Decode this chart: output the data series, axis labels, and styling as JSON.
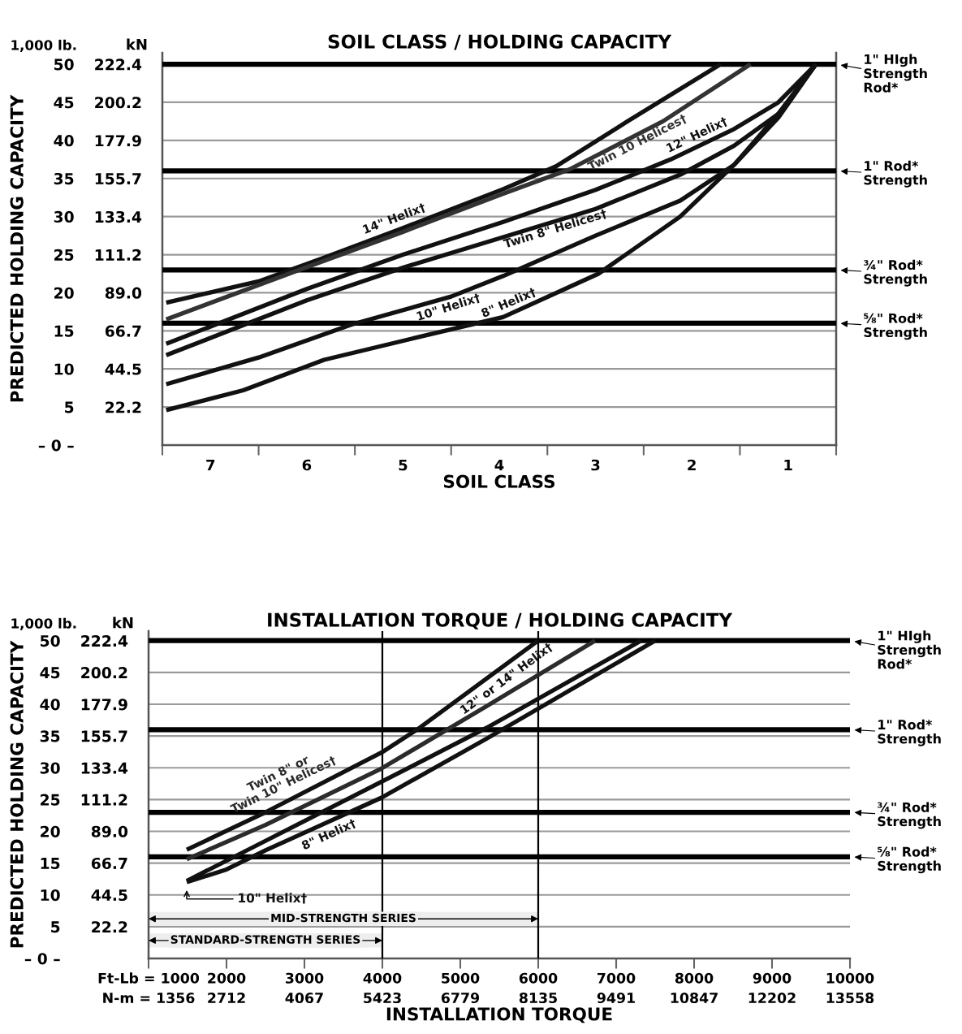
{
  "chart_data": [
    {
      "type": "line",
      "title": "SOIL CLASS / HOLDING CAPACITY",
      "xlabel": "SOIL CLASS",
      "ylabel": "PREDICTED HOLDING CAPACITY",
      "y2label": "kN",
      "annotations": [
        "1,000 lb."
      ],
      "xlim": [
        7.5,
        0.5
      ],
      "xticks": [
        {
          "value": 7.5,
          "label": null
        },
        {
          "value": 6.5,
          "label": null
        },
        {
          "value": 5.5,
          "label": null
        },
        {
          "value": 4.5,
          "label": null
        },
        {
          "value": 3.5,
          "label": null
        },
        {
          "value": 2.5,
          "label": null
        },
        {
          "value": 1.5,
          "label": null
        },
        {
          "value": 0.5,
          "label": null
        },
        7,
        6,
        5,
        4,
        3,
        2,
        1
      ],
      "ylim": [
        0,
        51.5
      ],
      "yticks": [
        {
          "value": 0,
          "label": "– 0 –"
        },
        5,
        10,
        15,
        20,
        25,
        30,
        35,
        40,
        45,
        50
      ],
      "y2lim": [
        0,
        229.1
      ],
      "y2ticks": [
        22.2,
        44.5,
        66.7,
        {
          "value": 89.0,
          "label": "89.0"
        },
        111.2,
        133.4,
        155.7,
        177.9,
        200.2,
        222.4
      ],
      "grid": "y",
      "ref_lines": [
        {
          "axis": "y",
          "value": 50,
          "label": "1\" HIgh\nStrength\nRod*"
        },
        {
          "axis": "y",
          "value": 36,
          "label": "1\" Rod*\nStrength"
        },
        {
          "axis": "y",
          "value": 23,
          "label": "¾\" Rod*\nStrength"
        },
        {
          "axis": "y",
          "value": 16,
          "label": "⅝\" Rod*\nStrength"
        }
      ],
      "series": [
        {
          "name": "14\" Helix†",
          "color": "#111111",
          "x": [
            7.46,
            6.5,
            5.82,
            5,
            3.96,
            3.41,
            2.68,
            1.7
          ],
          "values": [
            18.7,
            21.5,
            24.6,
            28.5,
            33.6,
            36.6,
            42.4,
            50
          ]
        },
        {
          "name": "Twin 10 Helices†",
          "color": "#333333",
          "x": [
            7.46,
            6.1,
            5,
            3.96,
            3.27,
            2.3,
            1.39
          ],
          "values": [
            16.5,
            22.9,
            28,
            33,
            36.2,
            42.5,
            50
          ]
        },
        {
          "name": "12\" Helix†",
          "color": "#111111",
          "x": [
            7.46,
            6,
            5,
            3.96,
            3,
            2.22,
            1.56,
            1.1,
            0.71
          ],
          "values": [
            13.3,
            20.5,
            25,
            29.3,
            33.5,
            37.5,
            41.5,
            45,
            50
          ]
        },
        {
          "name": "Twin 8\" Helices†",
          "color": "#111111",
          "x": [
            7.46,
            6,
            5,
            3.96,
            3,
            2.12,
            1.56,
            1.1,
            0.71
          ],
          "values": [
            11.8,
            19,
            23.3,
            27.3,
            31,
            35.5,
            39.3,
            43.5,
            50
          ]
        },
        {
          "name": "10\" Helix†",
          "color": "#111111",
          "x": [
            7.46,
            6.5,
            5.54,
            4.5,
            3.96,
            3,
            2.12,
            1.56,
            1.1,
            0.71
          ],
          "values": [
            8.0,
            11.5,
            15.8,
            19.5,
            22.2,
            27.5,
            32.1,
            36.8,
            43,
            50
          ]
        },
        {
          "name": "8\" Helix†",
          "color": "#111111",
          "x": [
            7.46,
            6.66,
            5.82,
            4.9,
            3.96,
            2.97,
            2.12,
            1.56,
            1.1,
            0.71
          ],
          "values": [
            4.6,
            7.2,
            11.2,
            14,
            16.8,
            22.5,
            30,
            36.8,
            43.5,
            50
          ]
        }
      ]
    },
    {
      "type": "line",
      "title": "INSTALLATION TORQUE / HOLDING CAPACITY",
      "xlabel": "INSTALLATION TORQUE",
      "ylabel": "PREDICTED HOLDING CAPACITY",
      "y2label": "kN",
      "annotations": [
        "1,000 lb."
      ],
      "xlim": [
        1000,
        10000
      ],
      "xticks": [
        {
          "value": 1000,
          "label": "Ft-Lb = 1000"
        },
        2000,
        3000,
        4000,
        5000,
        6000,
        7000,
        8000,
        9000,
        10000
      ],
      "x2lim": [
        1356,
        13558
      ],
      "x2ticks": [
        {
          "value": 1356,
          "label": "N-m = 1356"
        },
        2712,
        4067,
        5423,
        6779,
        8135,
        9491,
        10847,
        12202,
        13558
      ],
      "ylim": [
        0,
        51.5
      ],
      "yticks": [
        {
          "value": 0,
          "label": "– 0 –"
        },
        5,
        10,
        15,
        20,
        25,
        30,
        35,
        40,
        45,
        50
      ],
      "y2lim": [
        0,
        229.1
      ],
      "y2ticks": [
        22.2,
        44.5,
        66.7,
        {
          "value": 89.0,
          "label": "89.0"
        },
        111.2,
        133.4,
        155.7,
        177.9,
        200.2,
        222.4
      ],
      "grid": "y",
      "ref_lines": [
        {
          "axis": "y",
          "value": 50,
          "label": "1\" HIgh\nStrength\nRod*"
        },
        {
          "axis": "y",
          "value": 36,
          "label": "1\" Rod*\nStrength"
        },
        {
          "axis": "y",
          "value": 23,
          "label": "¾\" Rod*\nStrength"
        },
        {
          "axis": "y",
          "value": 16,
          "label": "⅝\" Rod*\nStrength"
        },
        {
          "axis": "x",
          "value": 4000,
          "label": null
        },
        {
          "axis": "x",
          "value": 6000,
          "label": null
        }
      ],
      "bands": [
        {
          "axis": "x",
          "from": 1000,
          "to": 4000,
          "label": "STANDARD-STRENGTH SERIES"
        },
        {
          "axis": "x",
          "from": 1000,
          "to": 6000,
          "label": "MID-STRENGTH SERIES"
        }
      ],
      "series": [
        {
          "name": "12\" or 14\" Helix†",
          "color": "#111111",
          "x": [
            1490,
            2500,
            3990,
            4480,
            6000
          ],
          "values": [
            17.1,
            23,
            32.4,
            36.3,
            50
          ]
        },
        {
          "name": "Twin 8\" or\nTwin 10\" Helices†",
          "color": "#2b2b2b",
          "x": [
            1490,
            2500,
            3990,
            5340,
            6730
          ],
          "values": [
            15.6,
            21,
            29.9,
            39.7,
            50
          ]
        },
        {
          "name": "10\" Helix†",
          "color": "#111111",
          "x": [
            1490,
            2500,
            3990,
            5340,
            7320
          ],
          "values": [
            12.2,
            18.5,
            27.8,
            36.3,
            50
          ]
        },
        {
          "name": "8\" Helix†",
          "color": "#111111",
          "x": [
            1490,
            2000,
            2500,
            3990,
            5340,
            7500
          ],
          "values": [
            12.0,
            14,
            17,
            25.3,
            34.6,
            50
          ]
        }
      ]
    }
  ]
}
